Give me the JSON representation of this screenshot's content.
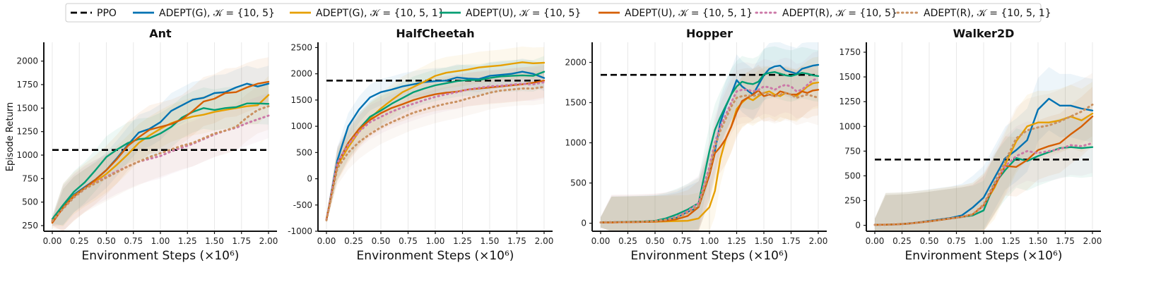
{
  "legend": [
    {
      "key": "ppo",
      "label": "PPO",
      "color": "#000000",
      "dash": "dashed"
    },
    {
      "key": "adept_g_105",
      "label": "ADEPT(G), 𝒦 = {10, 5}",
      "color": "#0072b2",
      "dash": "solid"
    },
    {
      "key": "adept_g_1051",
      "label": "ADEPT(G), 𝒦 = {10, 5, 1}",
      "color": "#e69f00",
      "dash": "solid"
    },
    {
      "key": "adept_u_105",
      "label": "ADEPT(U), 𝒦 = {10, 5}",
      "color": "#009e73",
      "dash": "solid"
    },
    {
      "key": "adept_u_1051",
      "label": "ADEPT(U), 𝒦 = {10, 5, 1}",
      "color": "#d55e00",
      "dash": "solid"
    },
    {
      "key": "adept_r_105",
      "label": "ADEPT(R), 𝒦 = {10, 5}",
      "color": "#cc79a7",
      "dash": "dotted"
    },
    {
      "key": "adept_r_1051",
      "label": "ADEPT(R), 𝒦 = {10, 5, 1}",
      "color": "#ca9161",
      "dash": "dotted"
    }
  ],
  "chart_data": [
    {
      "type": "line",
      "title": "Ant",
      "xlabel": "Environment Steps (×10⁶)",
      "ylabel": "Episode Return",
      "xlim": [
        0,
        2.0
      ],
      "ylim": [
        190,
        2200
      ],
      "xticks": [
        0.0,
        0.25,
        0.5,
        0.75,
        1.0,
        1.25,
        1.5,
        1.75,
        2.0
      ],
      "xtick_labels": [
        "0.00",
        "0.25",
        "0.50",
        "0.75",
        "1.00",
        "1.25",
        "1.50",
        "1.75",
        "2.00"
      ],
      "yticks": [
        250,
        500,
        750,
        1000,
        1250,
        1500,
        1750,
        2000
      ],
      "ppo": 1055,
      "x": [
        0,
        0.1,
        0.2,
        0.3,
        0.4,
        0.5,
        0.6,
        0.7,
        0.8,
        0.9,
        1.0,
        1.1,
        1.2,
        1.3,
        1.4,
        1.5,
        1.6,
        1.7,
        1.8,
        1.9,
        2.0
      ],
      "series": [
        {
          "key": "adept_g_105",
          "values": [
            290,
            450,
            580,
            660,
            740,
            840,
            970,
            1110,
            1240,
            1280,
            1350,
            1470,
            1530,
            1590,
            1610,
            1660,
            1670,
            1720,
            1760,
            1730,
            1760
          ],
          "band": 190
        },
        {
          "key": "adept_g_1051",
          "values": [
            290,
            440,
            570,
            650,
            720,
            800,
            900,
            1010,
            1130,
            1210,
            1280,
            1340,
            1380,
            1410,
            1430,
            1460,
            1480,
            1500,
            1520,
            1530,
            1640
          ],
          "band": 200
        },
        {
          "key": "adept_u_105",
          "values": [
            320,
            470,
            610,
            710,
            840,
            980,
            1060,
            1130,
            1170,
            1180,
            1230,
            1300,
            1400,
            1460,
            1500,
            1480,
            1500,
            1510,
            1550,
            1550,
            1545
          ],
          "band": 220
        },
        {
          "key": "adept_u_1051",
          "values": [
            280,
            440,
            560,
            650,
            740,
            840,
            960,
            1100,
            1190,
            1270,
            1300,
            1330,
            1380,
            1470,
            1570,
            1600,
            1660,
            1670,
            1720,
            1760,
            1780
          ],
          "band": 260
        },
        {
          "key": "adept_r_105",
          "values": [
            300,
            430,
            550,
            640,
            710,
            770,
            830,
            880,
            930,
            960,
            990,
            1040,
            1080,
            1120,
            1170,
            1220,
            1260,
            1290,
            1340,
            1380,
            1420
          ],
          "band": 240
        },
        {
          "key": "adept_r_1051",
          "values": [
            300,
            430,
            550,
            640,
            700,
            760,
            820,
            880,
            930,
            980,
            1020,
            1060,
            1100,
            1130,
            1180,
            1230,
            1260,
            1300,
            1400,
            1480,
            1520
          ],
          "band": 250
        }
      ]
    },
    {
      "type": "line",
      "title": "HalfCheetah",
      "xlabel": "Environment Steps (×10⁶)",
      "ylabel": "",
      "xlim": [
        0,
        2.0
      ],
      "ylim": [
        -1000,
        2600
      ],
      "xticks": [
        0.0,
        0.25,
        0.5,
        0.75,
        1.0,
        1.25,
        1.5,
        1.75,
        2.0
      ],
      "xtick_labels": [
        "0.00",
        "0.25",
        "0.50",
        "0.75",
        "1.00",
        "1.25",
        "1.50",
        "1.75",
        "2.00"
      ],
      "yticks": [
        -1000,
        -500,
        0,
        500,
        1000,
        1500,
        2000,
        2500
      ],
      "ppo": 1870,
      "x": [
        0,
        0.1,
        0.2,
        0.3,
        0.4,
        0.5,
        0.6,
        0.7,
        0.8,
        0.9,
        1.0,
        1.1,
        1.2,
        1.3,
        1.4,
        1.5,
        1.6,
        1.7,
        1.8,
        1.9,
        2.0
      ],
      "series": [
        {
          "key": "adept_g_105",
          "values": [
            -780,
            350,
            1000,
            1320,
            1550,
            1650,
            1700,
            1760,
            1800,
            1840,
            1860,
            1870,
            1930,
            1910,
            1900,
            1960,
            1980,
            2000,
            2040,
            2000,
            1920
          ],
          "band": 250
        },
        {
          "key": "adept_g_1051",
          "values": [
            -770,
            250,
            600,
            900,
            1150,
            1340,
            1500,
            1650,
            1750,
            1850,
            1960,
            2020,
            2050,
            2080,
            2120,
            2140,
            2160,
            2190,
            2220,
            2200,
            2210
          ],
          "band": 300
        },
        {
          "key": "adept_u_105",
          "values": [
            -780,
            280,
            680,
            950,
            1180,
            1300,
            1430,
            1540,
            1650,
            1720,
            1780,
            1820,
            1860,
            1880,
            1880,
            1920,
            1950,
            1960,
            1970,
            1960,
            2040
          ],
          "band": 300
        },
        {
          "key": "adept_u_1051",
          "values": [
            -780,
            280,
            680,
            950,
            1120,
            1250,
            1350,
            1420,
            1500,
            1560,
            1610,
            1640,
            1660,
            1700,
            1720,
            1740,
            1760,
            1780,
            1800,
            1830,
            1870
          ],
          "band": 320
        },
        {
          "key": "adept_r_105",
          "values": [
            -780,
            300,
            650,
            900,
            1080,
            1180,
            1280,
            1360,
            1430,
            1500,
            1560,
            1610,
            1650,
            1700,
            1730,
            1760,
            1770,
            1790,
            1810,
            1800,
            1840
          ],
          "band": 320
        },
        {
          "key": "adept_r_1051",
          "values": [
            -790,
            200,
            500,
            700,
            850,
            980,
            1080,
            1170,
            1260,
            1320,
            1380,
            1430,
            1470,
            1530,
            1580,
            1640,
            1680,
            1700,
            1720,
            1720,
            1750
          ],
          "band": 320
        }
      ]
    },
    {
      "type": "line",
      "title": "Hopper",
      "xlabel": "Environment Steps (×10⁶)",
      "ylabel": "",
      "xlim": [
        0,
        2.0
      ],
      "ylim": [
        -100,
        2250
      ],
      "xticks": [
        0.0,
        0.25,
        0.5,
        0.75,
        1.0,
        1.25,
        1.5,
        1.75,
        2.0
      ],
      "xtick_labels": [
        "0.00",
        "0.25",
        "0.50",
        "0.75",
        "1.00",
        "1.25",
        "1.50",
        "1.75",
        "2.00"
      ],
      "yticks": [
        0,
        500,
        1000,
        1500,
        2000
      ],
      "ppo": 1845,
      "x": [
        0,
        0.1,
        0.2,
        0.3,
        0.4,
        0.5,
        0.6,
        0.7,
        0.8,
        0.9,
        1.0,
        1.05,
        1.1,
        1.15,
        1.2,
        1.25,
        1.3,
        1.35,
        1.4,
        1.45,
        1.5,
        1.55,
        1.6,
        1.65,
        1.7,
        1.75,
        1.8,
        1.85,
        1.9,
        1.95,
        2.0
      ],
      "series": [
        {
          "key": "adept_g_105",
          "values": [
            10,
            12,
            14,
            16,
            20,
            25,
            40,
            70,
            140,
            200,
            600,
            900,
            1250,
            1450,
            1600,
            1780,
            1700,
            1650,
            1600,
            1720,
            1840,
            1920,
            1950,
            1960,
            1900,
            1880,
            1860,
            1920,
            1940,
            1960,
            1970
          ],
          "band": 320
        },
        {
          "key": "adept_g_1051",
          "values": [
            10,
            10,
            12,
            14,
            16,
            18,
            22,
            26,
            30,
            60,
            200,
            400,
            800,
            1050,
            1200,
            1420,
            1500,
            1560,
            1530,
            1580,
            1620,
            1640,
            1600,
            1580,
            1620,
            1600,
            1580,
            1640,
            1700,
            1740,
            1750
          ],
          "band": 320
        },
        {
          "key": "adept_u_105",
          "values": [
            10,
            12,
            14,
            18,
            22,
            30,
            60,
            110,
            170,
            250,
            900,
            1160,
            1320,
            1460,
            1600,
            1700,
            1760,
            1740,
            1730,
            1760,
            1850,
            1870,
            1880,
            1860,
            1840,
            1830,
            1850,
            1870,
            1860,
            1840,
            1830
          ],
          "band": 320
        },
        {
          "key": "adept_u_1051",
          "values": [
            10,
            10,
            12,
            14,
            16,
            20,
            30,
            50,
            90,
            200,
            600,
            870,
            950,
            1050,
            1200,
            1380,
            1520,
            1560,
            1600,
            1650,
            1580,
            1600,
            1580,
            1640,
            1620,
            1600,
            1600,
            1640,
            1620,
            1650,
            1660
          ],
          "band": 320
        },
        {
          "key": "adept_r_105",
          "values": [
            10,
            12,
            14,
            16,
            20,
            28,
            45,
            80,
            150,
            250,
            700,
            1000,
            1200,
            1350,
            1500,
            1640,
            1660,
            1660,
            1640,
            1660,
            1700,
            1690,
            1660,
            1700,
            1720,
            1700,
            1640,
            1660,
            1720,
            1780,
            1800
          ],
          "band": 340
        },
        {
          "key": "adept_r_1051",
          "values": [
            10,
            12,
            14,
            16,
            20,
            26,
            40,
            70,
            130,
            220,
            650,
            950,
            1150,
            1300,
            1450,
            1560,
            1580,
            1590,
            1580,
            1600,
            1620,
            1600,
            1580,
            1600,
            1620,
            1600,
            1560,
            1580,
            1600,
            1580,
            1560
          ],
          "band": 340
        }
      ]
    },
    {
      "type": "line",
      "title": "Walker2D",
      "xlabel": "Environment Steps (×10⁶)",
      "ylabel": "",
      "xlim": [
        0,
        2.0
      ],
      "ylim": [
        -60,
        1850
      ],
      "xticks": [
        0.0,
        0.25,
        0.5,
        0.75,
        1.0,
        1.25,
        1.5,
        1.75,
        2.0
      ],
      "xtick_labels": [
        "0.00",
        "0.25",
        "0.50",
        "0.75",
        "1.00",
        "1.25",
        "1.50",
        "1.75",
        "2.00"
      ],
      "yticks": [
        0,
        250,
        500,
        750,
        1000,
        1250,
        1500,
        1750
      ],
      "ppo": 665,
      "x": [
        0,
        0.1,
        0.2,
        0.3,
        0.4,
        0.5,
        0.6,
        0.7,
        0.8,
        0.9,
        1.0,
        1.1,
        1.2,
        1.3,
        1.4,
        1.5,
        1.6,
        1.7,
        1.8,
        1.9,
        2.0
      ],
      "series": [
        {
          "key": "adept_g_105",
          "values": [
            5,
            6,
            10,
            18,
            30,
            45,
            60,
            75,
            100,
            180,
            280,
            480,
            680,
            760,
            860,
            1170,
            1280,
            1210,
            1210,
            1180,
            1160
          ],
          "band": 320
        },
        {
          "key": "adept_g_1051",
          "values": [
            5,
            6,
            10,
            16,
            28,
            40,
            55,
            70,
            85,
            110,
            200,
            380,
            620,
            850,
            1000,
            1040,
            1040,
            1060,
            1100,
            1060,
            1130
          ],
          "band": 320
        },
        {
          "key": "adept_u_105",
          "values": [
            5,
            6,
            10,
            16,
            28,
            40,
            55,
            70,
            85,
            100,
            150,
            420,
            560,
            680,
            650,
            700,
            740,
            780,
            790,
            780,
            790
          ],
          "band": 300
        },
        {
          "key": "adept_u_1051",
          "values": [
            5,
            6,
            10,
            16,
            28,
            40,
            55,
            70,
            85,
            110,
            200,
            400,
            600,
            590,
            660,
            760,
            800,
            830,
            920,
            1000,
            1100
          ],
          "band": 300
        },
        {
          "key": "adept_r_105",
          "values": [
            5,
            6,
            10,
            16,
            28,
            40,
            55,
            70,
            85,
            110,
            200,
            420,
            600,
            700,
            750,
            730,
            750,
            770,
            810,
            800,
            830
          ],
          "band": 300
        },
        {
          "key": "adept_r_1051",
          "values": [
            5,
            6,
            10,
            16,
            28,
            40,
            55,
            70,
            85,
            110,
            210,
            430,
            650,
            880,
            960,
            990,
            1010,
            1050,
            1100,
            1150,
            1220
          ],
          "band": 320
        }
      ]
    }
  ]
}
